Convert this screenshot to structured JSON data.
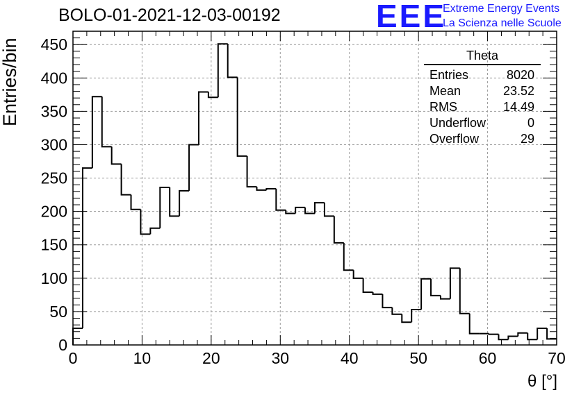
{
  "header": {
    "title": "BOLO-01-2021-12-03-00192",
    "logo_text": "EEE",
    "logo_line1": "Extreme Energy Events",
    "logo_line2": "La Scienza nelle Scuole"
  },
  "stats_box": {
    "name": "Theta",
    "rows": [
      {
        "label": "Entries",
        "value": "8020"
      },
      {
        "label": "Mean",
        "value": "23.52"
      },
      {
        "label": "RMS",
        "value": "14.49"
      },
      {
        "label": "Underflow",
        "value": "0"
      },
      {
        "label": "Overflow",
        "value": "29"
      }
    ]
  },
  "chart_data": {
    "type": "bar",
    "subtype": "step-histogram",
    "title": "BOLO-01-2021-12-03-00192",
    "xlabel": "θ [°]",
    "ylabel": "Entries/bin",
    "xlim": [
      0,
      70
    ],
    "ylim": [
      0,
      470
    ],
    "bin_width": 1.4,
    "xticks": [
      0,
      10,
      20,
      30,
      40,
      50,
      60,
      70
    ],
    "yticks": [
      0,
      50,
      100,
      150,
      200,
      250,
      300,
      350,
      400,
      450
    ],
    "grid": true,
    "line_color": "#000000",
    "values": [
      25,
      265,
      372,
      297,
      271,
      225,
      203,
      166,
      175,
      236,
      193,
      231,
      300,
      379,
      371,
      451,
      401,
      283,
      237,
      232,
      234,
      202,
      197,
      206,
      197,
      213,
      193,
      153,
      112,
      100,
      79,
      76,
      56,
      46,
      34,
      53,
      99,
      74,
      69,
      115,
      47,
      17,
      17,
      16,
      8,
      13,
      18,
      8,
      25,
      9
    ]
  }
}
